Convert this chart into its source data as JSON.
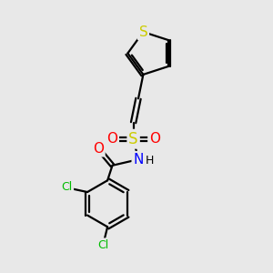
{
  "bg_color": "#e8e8e8",
  "bond_color": "#000000",
  "bond_width": 1.6,
  "atom_colors": {
    "S_thiophene": "#cccc00",
    "S_sulfonyl": "#cccc00",
    "O": "#ff0000",
    "N": "#0000ff",
    "Cl": "#00bb00",
    "C": "#000000",
    "H": "#000000"
  },
  "font_size_atoms": 10,
  "xlim": [
    0,
    10
  ],
  "ylim": [
    0,
    10
  ]
}
